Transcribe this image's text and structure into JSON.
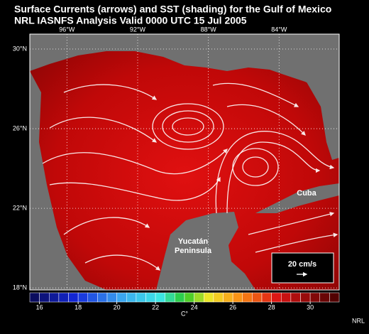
{
  "header": {
    "title": "Surface Currents (arrows) and SST (shading) for the Gulf of Mexico",
    "subtitle": "NRL IASNFS Analysis Valid 0000 UTC  15 Jul 2005"
  },
  "map": {
    "lonlim": [
      -98.1,
      -80.6
    ],
    "latlim": [
      17.9,
      30.75
    ],
    "lon_ticks": [
      {
        "value": -96,
        "label": "96°W"
      },
      {
        "value": -92,
        "label": "92°W"
      },
      {
        "value": -88,
        "label": "88°W"
      },
      {
        "value": -84,
        "label": "84°W"
      }
    ],
    "lat_ticks": [
      {
        "value": 30,
        "label": "30°N"
      },
      {
        "value": 26,
        "label": "26°N"
      },
      {
        "value": 22,
        "label": "22°N"
      },
      {
        "value": 18,
        "label": "18°N"
      }
    ],
    "places": [
      "Cuba",
      "Yucatán",
      "Peninsula"
    ],
    "scale_label": "20 cm/s"
  },
  "colorbar": {
    "range": [
      15.5,
      31.5
    ],
    "ticks": [
      16,
      18,
      20,
      22,
      24,
      26,
      28,
      30
    ],
    "unit": "C°"
  },
  "credit": "NRL"
}
